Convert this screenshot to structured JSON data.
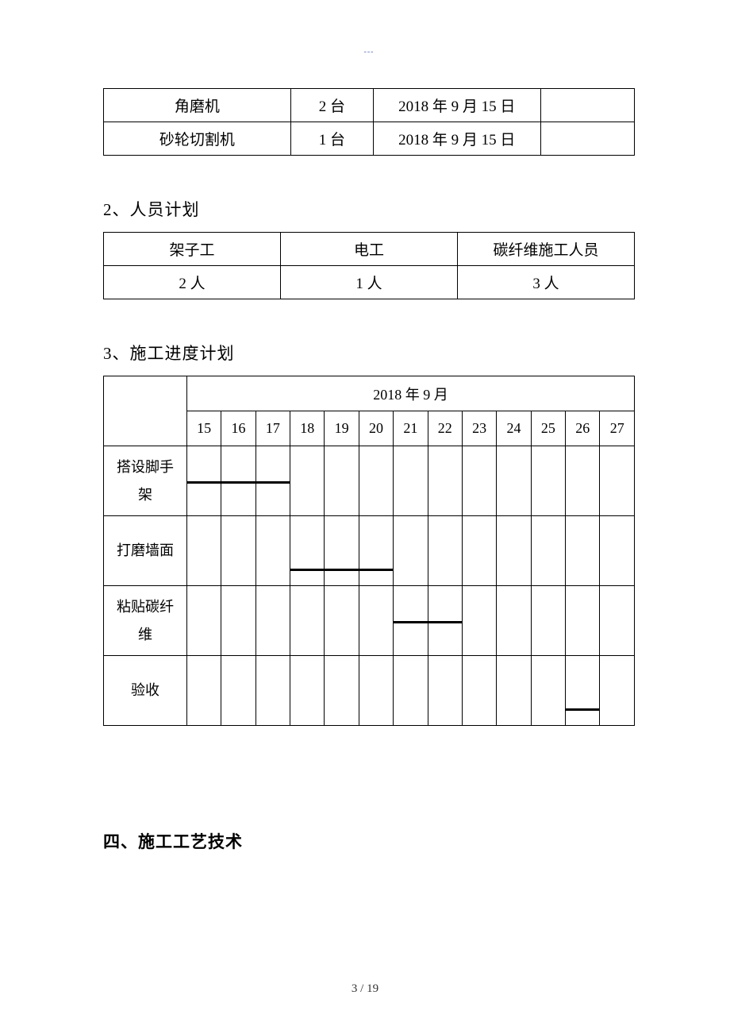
{
  "header_mark": "---",
  "equipment": {
    "rows": [
      {
        "name": "角磨机",
        "qty": "2 台",
        "date": "2018 年 9 月 15 日",
        "note": ""
      },
      {
        "name": "砂轮切割机",
        "qty": "1 台",
        "date": "2018 年 9 月 15 日",
        "note": ""
      }
    ]
  },
  "staff": {
    "title": "2、人员计划",
    "headers": [
      "架子工",
      "电工",
      "碳纤维施工人员"
    ],
    "values": [
      "2 人",
      "1 人",
      "3 人"
    ]
  },
  "schedule": {
    "title": "3、施工进度计划",
    "month_header": "2018 年 9 月",
    "days": [
      "15",
      "16",
      "17",
      "18",
      "19",
      "20",
      "21",
      "22",
      "23",
      "24",
      "25",
      "26",
      "27"
    ],
    "tasks": [
      {
        "name": "搭设脚手架",
        "start_idx": 0,
        "end_idx": 2,
        "bar_pos": "mid"
      },
      {
        "name": "打磨墙面",
        "start_idx": 3,
        "end_idx": 5,
        "bar_pos": "bottom"
      },
      {
        "name": "粘贴碳纤维",
        "start_idx": 6,
        "end_idx": 7,
        "bar_pos": "mid"
      },
      {
        "name": "验收",
        "start_idx": 11,
        "end_idx": 11,
        "bar_pos": "bottom"
      }
    ]
  },
  "section4_title": "四、施工工艺技术",
  "page_footer": "3 / 19",
  "colors": {
    "border": "#000000",
    "text": "#000000",
    "header_mark": "#5b6fb5",
    "background": "#ffffff"
  }
}
